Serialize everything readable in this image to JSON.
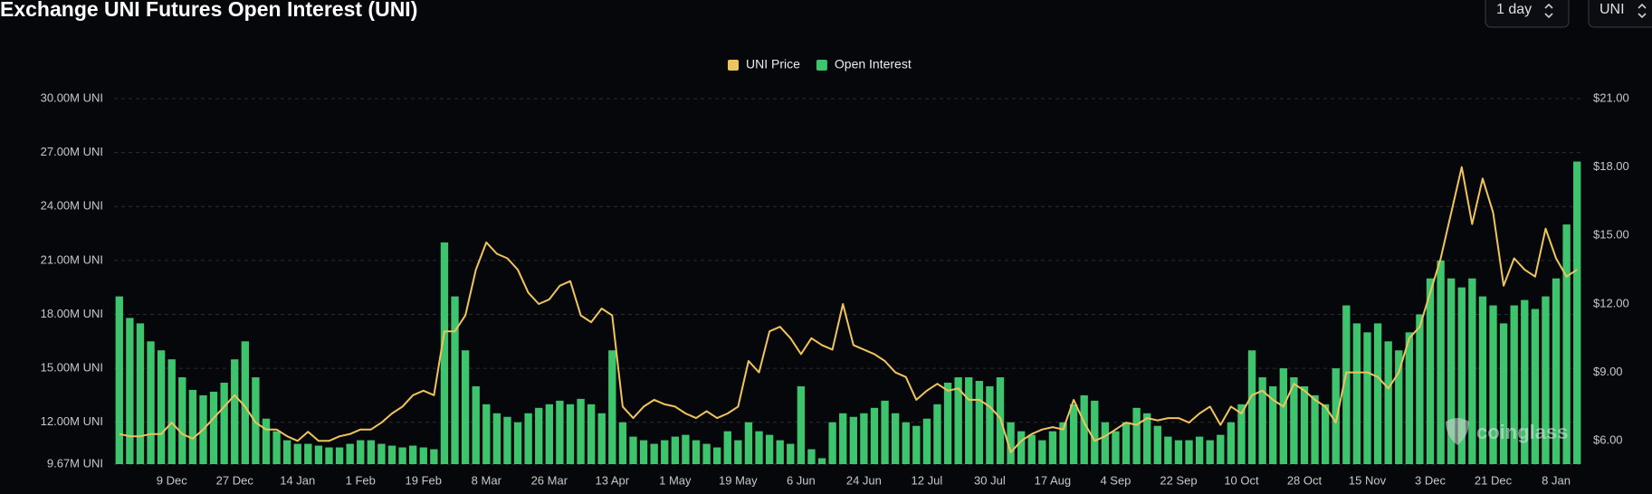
{
  "header": {
    "title": "Exchange UNI Futures Open Interest (UNI)",
    "controls": [
      "1 day",
      "UNI"
    ]
  },
  "watermark": "coinglass",
  "chart_data": {
    "type": "bar",
    "categories": [
      null,
      null,
      null,
      null,
      null,
      "9 Dec",
      null,
      null,
      null,
      null,
      null,
      "27 Dec",
      null,
      null,
      null,
      null,
      null,
      "14 Jan",
      null,
      null,
      null,
      null,
      null,
      "1 Feb",
      null,
      null,
      null,
      null,
      null,
      "19 Feb",
      null,
      null,
      null,
      null,
      null,
      "8 Mar",
      null,
      null,
      null,
      null,
      null,
      "26 Mar",
      null,
      null,
      null,
      null,
      null,
      "13 Apr",
      null,
      null,
      null,
      null,
      null,
      "1 May",
      null,
      null,
      null,
      null,
      null,
      "19 May",
      null,
      null,
      null,
      null,
      null,
      "6 Jun",
      null,
      null,
      null,
      null,
      null,
      "24 Jun",
      null,
      null,
      null,
      null,
      null,
      "12 Jul",
      null,
      null,
      null,
      null,
      null,
      "30 Jul",
      null,
      null,
      null,
      null,
      null,
      "17 Aug",
      null,
      null,
      null,
      null,
      null,
      "4 Sep",
      null,
      null,
      null,
      null,
      null,
      "22 Sep",
      null,
      null,
      null,
      null,
      null,
      "10 Oct",
      null,
      null,
      null,
      null,
      null,
      "28 Oct",
      null,
      null,
      null,
      null,
      null,
      "15 Nov",
      null,
      null,
      null,
      null,
      null,
      "3 Dec",
      null,
      null,
      null,
      null,
      null,
      "21 Dec",
      null,
      null,
      null,
      null,
      null,
      "8 Jan",
      null,
      null
    ],
    "series": [
      {
        "name": "UNI Price",
        "type": "line",
        "axis": "y2",
        "color": "#f0c45c",
        "values": [
          6.3,
          6.2,
          6.2,
          6.3,
          6.3,
          6.8,
          6.3,
          6.1,
          6.5,
          7.0,
          7.5,
          8.0,
          7.5,
          6.8,
          6.5,
          6.5,
          6.2,
          6.0,
          6.4,
          6.0,
          6.0,
          6.2,
          6.3,
          6.5,
          6.5,
          6.8,
          7.2,
          7.5,
          8.0,
          8.2,
          8.0,
          10.8,
          10.8,
          11.5,
          13.5,
          14.7,
          14.2,
          14.0,
          13.5,
          12.5,
          12.0,
          12.2,
          12.8,
          13.0,
          11.5,
          11.2,
          11.8,
          11.5,
          7.5,
          7.0,
          7.5,
          7.8,
          7.6,
          7.5,
          7.2,
          7.0,
          7.3,
          7.0,
          7.2,
          7.5,
          9.5,
          9.0,
          10.8,
          11.0,
          10.5,
          9.8,
          10.5,
          10.2,
          10.0,
          12.0,
          10.2,
          10.0,
          9.8,
          9.5,
          9.0,
          8.8,
          7.8,
          8.2,
          8.5,
          8.2,
          8.3,
          7.8,
          7.8,
          7.5,
          7.0,
          5.5,
          6.0,
          6.3,
          6.5,
          6.6,
          6.5,
          7.8,
          6.8,
          6.0,
          6.2,
          6.5,
          6.8,
          6.7,
          7.0,
          6.9,
          7.0,
          7.0,
          6.8,
          7.2,
          7.5,
          6.7,
          7.5,
          7.2,
          8.0,
          8.2,
          7.8,
          7.5,
          8.5,
          8.2,
          7.8,
          7.5,
          6.8,
          9.0,
          9.0,
          9.0,
          8.8,
          8.3,
          9.0,
          10.5,
          11.0,
          12.5,
          14.0,
          16.0,
          18.0,
          15.5,
          17.5,
          16.0,
          12.8,
          14.0,
          13.5,
          13.2,
          15.3,
          14.0,
          13.2,
          13.5
        ]
      },
      {
        "name": "Open Interest",
        "color": "#3dc46d",
        "values": [
          19.0,
          17.8,
          17.5,
          16.5,
          16.0,
          15.5,
          14.5,
          13.8,
          13.5,
          13.7,
          14.2,
          15.5,
          16.5,
          14.5,
          12.2,
          11.5,
          11.0,
          10.8,
          10.8,
          10.7,
          10.6,
          10.6,
          10.8,
          11.0,
          11.0,
          10.8,
          10.7,
          10.6,
          10.7,
          10.6,
          10.5,
          22.0,
          19.0,
          16.0,
          14.0,
          13.0,
          12.5,
          12.3,
          12.0,
          12.5,
          12.8,
          13.0,
          13.2,
          13.0,
          13.3,
          13.0,
          12.5,
          16.0,
          12.0,
          11.2,
          11.0,
          10.8,
          11.0,
          11.2,
          11.3,
          11.0,
          10.8,
          10.6,
          11.5,
          11.0,
          12.0,
          11.5,
          11.3,
          11.0,
          10.8,
          14.0,
          10.5,
          10.0,
          12.0,
          12.5,
          12.3,
          12.5,
          12.8,
          13.2,
          12.5,
          12.0,
          11.8,
          12.2,
          13.0,
          14.2,
          14.5,
          14.5,
          14.3,
          14.0,
          14.5,
          12.0,
          11.5,
          11.3,
          11.0,
          11.5,
          12.0,
          13.0,
          13.5,
          13.2,
          12.0,
          11.5,
          12.0,
          12.8,
          12.5,
          11.8,
          11.2,
          11.0,
          11.0,
          11.2,
          11.0,
          11.3,
          12.0,
          13.0,
          16.0,
          14.5,
          14.0,
          15.0,
          14.5,
          14.0,
          13.5,
          13.0,
          15.0,
          18.5,
          17.5,
          17.0,
          17.5,
          16.5,
          16.0,
          17.0,
          18.0,
          20.0,
          21.0,
          20.0,
          19.5,
          20.0,
          19.0,
          18.5,
          17.5,
          18.5,
          18.8,
          18.3,
          19.0,
          20.0,
          23.0,
          26.5
        ]
      }
    ],
    "ylim": [
      9.67,
      30
    ],
    "yticks": [
      {
        "value": 9.67,
        "label": "9.67M UNI"
      },
      {
        "value": 12,
        "label": "12.00M UNI"
      },
      {
        "value": 15,
        "label": "15.00M UNI"
      },
      {
        "value": 18,
        "label": "18.00M UNI"
      },
      {
        "value": 21,
        "label": "21.00M UNI"
      },
      {
        "value": 24,
        "label": "24.00M UNI"
      },
      {
        "value": 27,
        "label": "27.00M UNI"
      },
      {
        "value": 30,
        "label": "30.00M UNI"
      }
    ],
    "y2lim": [
      4.98,
      21
    ],
    "y2ticks": [
      {
        "value": 6,
        "label": "$6.00"
      },
      {
        "value": 9,
        "label": "$9.00"
      },
      {
        "value": 12,
        "label": "$12.00"
      },
      {
        "value": 15,
        "label": "$15.00"
      },
      {
        "value": 18,
        "label": "$18.00"
      },
      {
        "value": 21,
        "label": "$21.00"
      }
    ],
    "grid": true
  }
}
